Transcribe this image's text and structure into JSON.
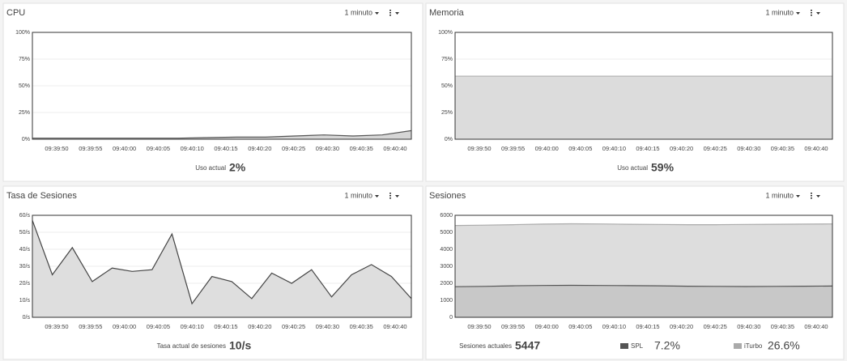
{
  "chart_data": [
    {
      "type": "area",
      "title": "CPU",
      "period": "1 minuto",
      "ylim": [
        0,
        100
      ],
      "yticks": [
        {
          "value": 0,
          "label": "0%"
        },
        {
          "value": 25,
          "label": "25%"
        },
        {
          "value": 50,
          "label": "50%"
        },
        {
          "value": 75,
          "label": "75%"
        },
        {
          "value": 100,
          "label": "100%"
        }
      ],
      "xticks": [
        "09:39:50",
        "09:39:55",
        "09:40:00",
        "09:40:05",
        "09:40:10",
        "09:40:15",
        "09:40:20",
        "09:40:25",
        "09:40:30",
        "09:40:35",
        "09:40:40"
      ],
      "series": [
        {
          "color": "#555555",
          "fill": "#d6d6d6",
          "values": [
            1,
            1,
            1,
            1,
            1,
            1,
            1.5,
            2,
            2,
            3,
            4,
            3,
            4,
            8
          ]
        }
      ],
      "current_label": "Uso actual",
      "current_value": "2%"
    },
    {
      "type": "area",
      "title": "Memoria",
      "period": "1 minuto",
      "ylim": [
        0,
        100
      ],
      "yticks": [
        {
          "value": 0,
          "label": "0%"
        },
        {
          "value": 25,
          "label": "25%"
        },
        {
          "value": 50,
          "label": "50%"
        },
        {
          "value": 75,
          "label": "75%"
        },
        {
          "value": 100,
          "label": "100%"
        }
      ],
      "xticks": [
        "09:39:50",
        "09:39:55",
        "09:40:00",
        "09:40:05",
        "09:40:10",
        "09:40:15",
        "09:40:20",
        "09:40:25",
        "09:40:30",
        "09:40:35",
        "09:40:40"
      ],
      "series": [
        {
          "color": "#b5b5b5",
          "fill": "#dcdcdc",
          "values": [
            59,
            59,
            59,
            59,
            59,
            59,
            59,
            59,
            59,
            59,
            59,
            59,
            59,
            59
          ]
        }
      ],
      "current_label": "Uso actual",
      "current_value": "59%"
    },
    {
      "type": "area",
      "title": "Tasa de Sesiones",
      "period": "1 minuto",
      "ylim": [
        0,
        60
      ],
      "yticks": [
        {
          "value": 0,
          "label": "0/s"
        },
        {
          "value": 10,
          "label": "10/s"
        },
        {
          "value": 20,
          "label": "20/s"
        },
        {
          "value": 30,
          "label": "30/s"
        },
        {
          "value": 40,
          "label": "40/s"
        },
        {
          "value": 50,
          "label": "50/s"
        },
        {
          "value": 60,
          "label": "60/s"
        }
      ],
      "xticks": [
        "09:39:50",
        "09:39:55",
        "09:40:00",
        "09:40:05",
        "09:40:10",
        "09:40:15",
        "09:40:20",
        "09:40:25",
        "09:40:30",
        "09:40:35",
        "09:40:40"
      ],
      "series": [
        {
          "color": "#444444",
          "fill": "#dedede",
          "values": [
            57,
            25,
            41,
            21,
            29,
            27,
            28,
            49,
            8,
            24,
            21,
            11,
            26,
            20,
            28,
            12,
            25,
            31,
            24,
            11
          ]
        }
      ],
      "current_label": "Tasa actual de sesiones",
      "current_value": "10/s"
    },
    {
      "type": "area",
      "title": "Sesiones",
      "period": "1 minuto",
      "ylim": [
        0,
        6000
      ],
      "yticks": [
        0,
        1000,
        2000,
        3000,
        4000,
        5000,
        6000
      ],
      "xticks": [
        "09:39:50",
        "09:39:55",
        "09:40:00",
        "09:40:05",
        "09:40:10",
        "09:40:15",
        "09:40:20",
        "09:40:25",
        "09:40:30",
        "09:40:35",
        "09:40:40"
      ],
      "series": [
        {
          "name": "SPL",
          "current": "7.2%",
          "color": "#555555",
          "fill": "#c8c8c8",
          "values": [
            1800,
            1820,
            1850,
            1870,
            1880,
            1870,
            1860,
            1850,
            1830,
            1820,
            1810,
            1820,
            1830,
            1840
          ]
        },
        {
          "name": "iTurbo",
          "current": "26.6%",
          "color": "#aaaaaa",
          "fill": "#dddddd",
          "values": [
            5400,
            5420,
            5450,
            5480,
            5500,
            5490,
            5470,
            5460,
            5450,
            5450,
            5460,
            5470,
            5480,
            5490
          ]
        }
      ],
      "current_label": "Sesiones actuales",
      "current_value": "5447"
    }
  ]
}
